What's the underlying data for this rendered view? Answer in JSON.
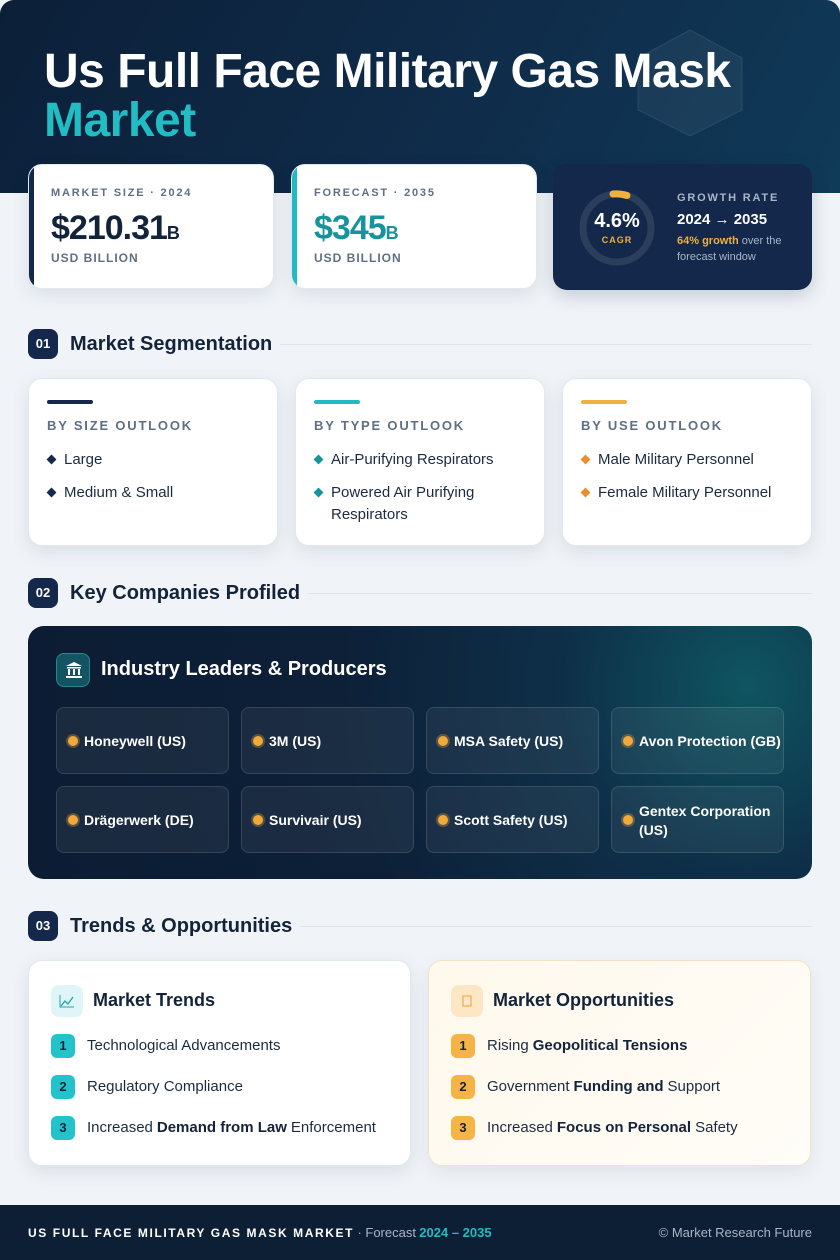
{
  "header": {
    "title_line1": "Us Full Face Military Gas Mask",
    "title_line2": "Market"
  },
  "stats": {
    "market_size": {
      "label": "MARKET SIZE · 2024",
      "value": "$210.31",
      "unit": "B",
      "sub": "USD BILLION"
    },
    "forecast": {
      "label": "FORECAST · 2035",
      "value": "$345",
      "unit": "B",
      "sub": "USD BILLION"
    },
    "growth": {
      "ring_value": "4.6%",
      "ring_label": "CAGR",
      "label": "GROWTH RATE",
      "range": "2024 → 2035",
      "highlight": "64% growth",
      "note": "over the forecast window"
    }
  },
  "sections": [
    {
      "num": "01",
      "title": "Market Segmentation"
    },
    {
      "num": "02",
      "title": "Key Companies Profiled"
    },
    {
      "num": "03",
      "title": "Trends & Opportunities"
    }
  ],
  "segmentation": [
    {
      "title": "BY SIZE OUTLOOK",
      "items": [
        "Large",
        "Medium & Small"
      ]
    },
    {
      "title": "BY TYPE OUTLOOK",
      "items": [
        "Air-Purifying Respirators",
        "Powered Air Purifying Respirators"
      ]
    },
    {
      "title": "BY USE OUTLOOK",
      "items": [
        "Male Military Personnel",
        "Female Military Personnel"
      ]
    }
  ],
  "companies": {
    "heading": "Industry Leaders & Producers",
    "list": [
      "Honeywell (US)",
      "3M (US)",
      "MSA Safety (US)",
      "Avon Protection (GB)",
      "Drägerwerk (DE)",
      "Survivair (US)",
      "Scott Safety (US)",
      "Gentex Corporation (US)"
    ]
  },
  "trends": {
    "title": "Market Trends",
    "items": [
      {
        "num": "1",
        "parts": [
          {
            "text": "Technological Advancements",
            "bold": false
          }
        ]
      },
      {
        "num": "2",
        "parts": [
          {
            "text": "Regulatory Compliance",
            "bold": false
          }
        ]
      },
      {
        "num": "3",
        "parts": [
          {
            "text": "Increased",
            "bold": false
          },
          {
            "text": "Demand from Law",
            "bold": true
          },
          {
            "text": "Enforcement",
            "bold": false
          }
        ]
      }
    ]
  },
  "opportunities": {
    "title": "Market Opportunities",
    "items": [
      {
        "num": "1",
        "parts": [
          {
            "text": "Rising",
            "bold": false
          },
          {
            "text": "Geopolitical Tensions",
            "bold": true
          }
        ]
      },
      {
        "num": "2",
        "parts": [
          {
            "text": "Government",
            "bold": false
          },
          {
            "text": "Funding and",
            "bold": true
          },
          {
            "text": "Support",
            "bold": false
          }
        ]
      },
      {
        "num": "3",
        "parts": [
          {
            "text": "Increased",
            "bold": false
          },
          {
            "text": "Focus on Personal",
            "bold": true
          },
          {
            "text": "Safety",
            "bold": false
          }
        ]
      }
    ]
  },
  "footer": {
    "brand": "US FULL FACE MILITARY GAS MASK MARKET",
    "forecast_label": "· Forecast",
    "years": "2024 – 2035",
    "copyright": "© Market Research Future"
  }
}
